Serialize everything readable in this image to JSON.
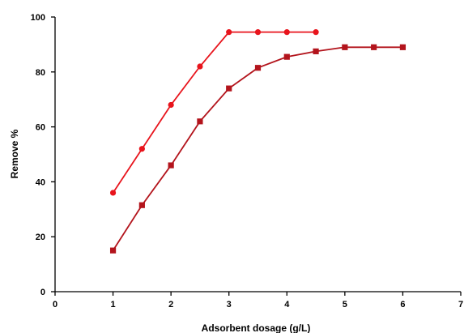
{
  "chart_data": {
    "type": "line",
    "title": "",
    "xlabel": "Adsorbent dosage (g/L)",
    "ylabel": "Remove %",
    "xlim": [
      0,
      7
    ],
    "ylim": [
      0,
      100
    ],
    "xticks": [
      0,
      1,
      2,
      3,
      4,
      5,
      6,
      7
    ],
    "yticks": [
      0,
      20,
      40,
      60,
      80,
      100
    ],
    "grid": false,
    "legend": "none",
    "series": [
      {
        "marker": "circle",
        "color": "#e8141c",
        "x": [
          1,
          1.5,
          2,
          2.5,
          3,
          3.5,
          4,
          4.5
        ],
        "y": [
          36,
          52,
          68,
          82,
          94.5,
          94.5,
          94.5,
          94.5
        ]
      },
      {
        "marker": "square",
        "color": "#b3141c",
        "x": [
          1,
          1.5,
          2,
          2.5,
          3,
          3.5,
          4,
          4.5,
          5,
          5.5,
          6
        ],
        "y": [
          15,
          31.5,
          46,
          62,
          74,
          81.5,
          85.5,
          87.5,
          89,
          89,
          89
        ]
      }
    ]
  }
}
